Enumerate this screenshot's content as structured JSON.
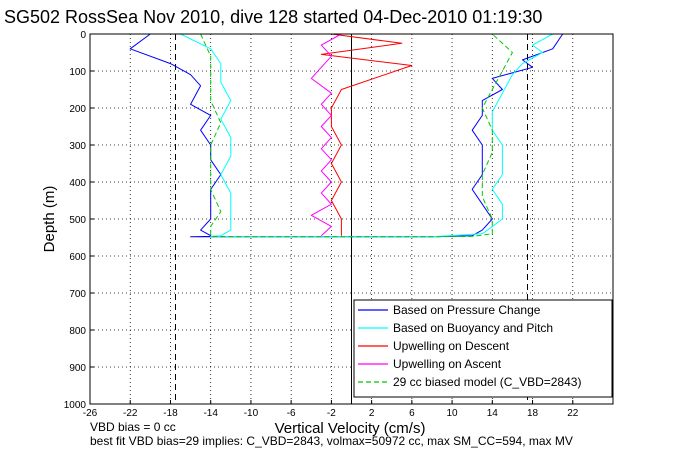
{
  "chart_data": {
    "type": "line",
    "title": "SG502 RossSea Nov 2010, dive 128 started 04-Dec-2010 01:19:30",
    "xlabel": "Vertical Velocity (cm/s)",
    "ylabel": "Depth (m)",
    "xlim": [
      -26,
      26
    ],
    "ylim": [
      1000,
      0
    ],
    "xticks": [
      "-26",
      "-22",
      "-18",
      "-14",
      "-10",
      "-6",
      "-2",
      "2",
      "6",
      "10",
      "14",
      "18",
      "22"
    ],
    "yticks": [
      "0",
      "100",
      "200",
      "300",
      "400",
      "500",
      "600",
      "700",
      "800",
      "900",
      "1000"
    ],
    "grid": true,
    "legend_position": "bottom-right",
    "reference_lines": {
      "dashed_x": [
        -17.5,
        17.5
      ],
      "solid_x": [
        0
      ]
    },
    "legend": [
      {
        "label": "Based on Pressure Change",
        "color": "#0000ff",
        "style": "solid"
      },
      {
        "label": "Based on Buoyancy and Pitch",
        "color": "#00ffff",
        "style": "solid"
      },
      {
        "label": "Upwelling on Descent",
        "color": "#ff0000",
        "style": "solid"
      },
      {
        "label": "Upwelling on Ascent",
        "color": "#ff00ff",
        "style": "solid"
      },
      {
        "label": "29 cc biased model (C_VBD=2843)",
        "color": "#00c800",
        "style": "dashed"
      }
    ],
    "series": [
      {
        "name": "Based on Pressure Change",
        "color": "#0000ff",
        "x": [
          -20,
          -22,
          -18,
          -16,
          -15,
          -16,
          -14,
          -15,
          -14,
          -14,
          -13,
          -14,
          -14,
          -14,
          -15,
          -14,
          -14,
          -14,
          -16,
          -10,
          0,
          8,
          12,
          13,
          14,
          13,
          12,
          13,
          13,
          13,
          12,
          13,
          13,
          15,
          14,
          18,
          17,
          20,
          21
        ],
        "y": [
          0,
          40,
          80,
          110,
          140,
          190,
          220,
          260,
          300,
          340,
          380,
          420,
          460,
          500,
          530,
          545,
          546,
          547,
          548,
          548,
          548,
          548,
          545,
          530,
          500,
          460,
          420,
          380,
          340,
          300,
          260,
          220,
          180,
          150,
          120,
          90,
          70,
          40,
          0
        ]
      },
      {
        "name": "Based on Buoyancy and Pitch",
        "color": "#00ffff",
        "x": [
          -17,
          -14,
          -13,
          -13,
          -12,
          -13,
          -12,
          -12,
          -13,
          -12,
          -12,
          -12,
          -12,
          -13,
          -14,
          -10,
          0,
          8,
          13,
          15,
          15,
          14,
          15,
          15,
          15,
          14,
          14,
          15,
          16,
          17,
          19,
          18,
          20
        ],
        "y": [
          0,
          40,
          80,
          130,
          180,
          230,
          280,
          330,
          380,
          430,
          480,
          510,
          530,
          545,
          547,
          548,
          548,
          548,
          540,
          500,
          460,
          420,
          380,
          340,
          300,
          260,
          210,
          160,
          110,
          80,
          50,
          30,
          0
        ]
      },
      {
        "name": "Upwelling on Descent",
        "color": "#ff0000",
        "x": [
          -2,
          5,
          -3,
          6,
          -1,
          -2,
          -2,
          -1,
          -2,
          -1,
          -2,
          -1,
          -1,
          -1
        ],
        "y": [
          0,
          25,
          55,
          85,
          150,
          200,
          250,
          300,
          350,
          400,
          450,
          500,
          530,
          545
        ]
      },
      {
        "name": "Upwelling on Ascent",
        "color": "#ff00ff",
        "x": [
          -3,
          -2,
          -4,
          -2,
          -3,
          -2,
          -3,
          -2,
          -3,
          -2,
          -3,
          -2,
          -3,
          -2,
          -4,
          -3,
          -2,
          -3,
          -1
        ],
        "y": [
          545,
          520,
          490,
          460,
          430,
          400,
          370,
          340,
          310,
          280,
          250,
          220,
          190,
          160,
          120,
          90,
          60,
          30,
          0
        ]
      },
      {
        "name": "29 cc biased model (C_VBD=2843)",
        "color": "#00c800",
        "dashed": true,
        "x": [
          -15,
          -14,
          -14,
          -14,
          -13,
          -14,
          -14,
          -14,
          -13,
          -14,
          -14,
          -14,
          -14,
          -10,
          0,
          8,
          12,
          14,
          14,
          13,
          13,
          14,
          14,
          13,
          14,
          15,
          16,
          14
        ],
        "y": [
          0,
          60,
          120,
          180,
          240,
          300,
          360,
          420,
          480,
          520,
          545,
          546,
          547,
          548,
          548,
          548,
          547,
          540,
          500,
          440,
          380,
          320,
          260,
          200,
          150,
          100,
          50,
          0
        ]
      }
    ]
  },
  "footer": {
    "line1": "VBD bias = 0 cc",
    "line2": "best fit VBD bias=29 implies: C_VBD=2843, volmax=50972 cc, max SM_CC=594, max MV"
  }
}
